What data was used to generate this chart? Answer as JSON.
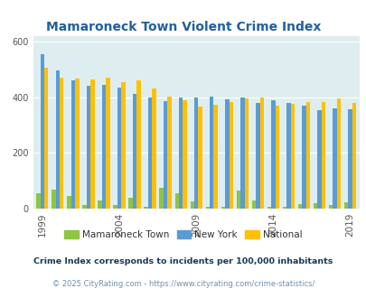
{
  "title": "Mamaroneck Town Violent Crime Index",
  "title_color": "#2060a0",
  "years": [
    1999,
    2000,
    2001,
    2002,
    2003,
    2004,
    2005,
    2006,
    2007,
    2008,
    2009,
    2010,
    2011,
    2012,
    2013,
    2014,
    2015,
    2016,
    2017,
    2018,
    2019
  ],
  "mamaroneck": [
    55,
    68,
    45,
    12,
    28,
    12,
    38,
    5,
    75,
    55,
    25,
    8,
    8,
    65,
    30,
    8,
    8,
    15,
    20,
    12,
    22
  ],
  "new_york": [
    555,
    495,
    460,
    440,
    445,
    435,
    410,
    398,
    387,
    400,
    400,
    403,
    392,
    400,
    378,
    390,
    378,
    370,
    353,
    360,
    355
  ],
  "national": [
    505,
    470,
    465,
    462,
    470,
    455,
    460,
    430,
    402,
    390,
    365,
    373,
    382,
    395,
    398,
    368,
    375,
    383,
    383,
    395,
    379
  ],
  "color_mamaroneck": "#8dc63f",
  "color_new_york": "#5b9bd5",
  "color_national": "#ffc000",
  "bg_color": "#deeef0",
  "ylim_max": 620,
  "yticks": [
    0,
    200,
    400,
    600
  ],
  "xlabel_ticks": [
    1999,
    2004,
    2009,
    2014,
    2019
  ],
  "legend_labels": [
    "Mamaroneck Town",
    "New York",
    "National"
  ],
  "footnote1": "Crime Index corresponds to incidents per 100,000 inhabitants",
  "footnote2": "© 2025 CityRating.com - https://www.cityrating.com/crime-statistics/",
  "footnote1_color": "#1a3a5c",
  "footnote2_color": "#7090b0"
}
